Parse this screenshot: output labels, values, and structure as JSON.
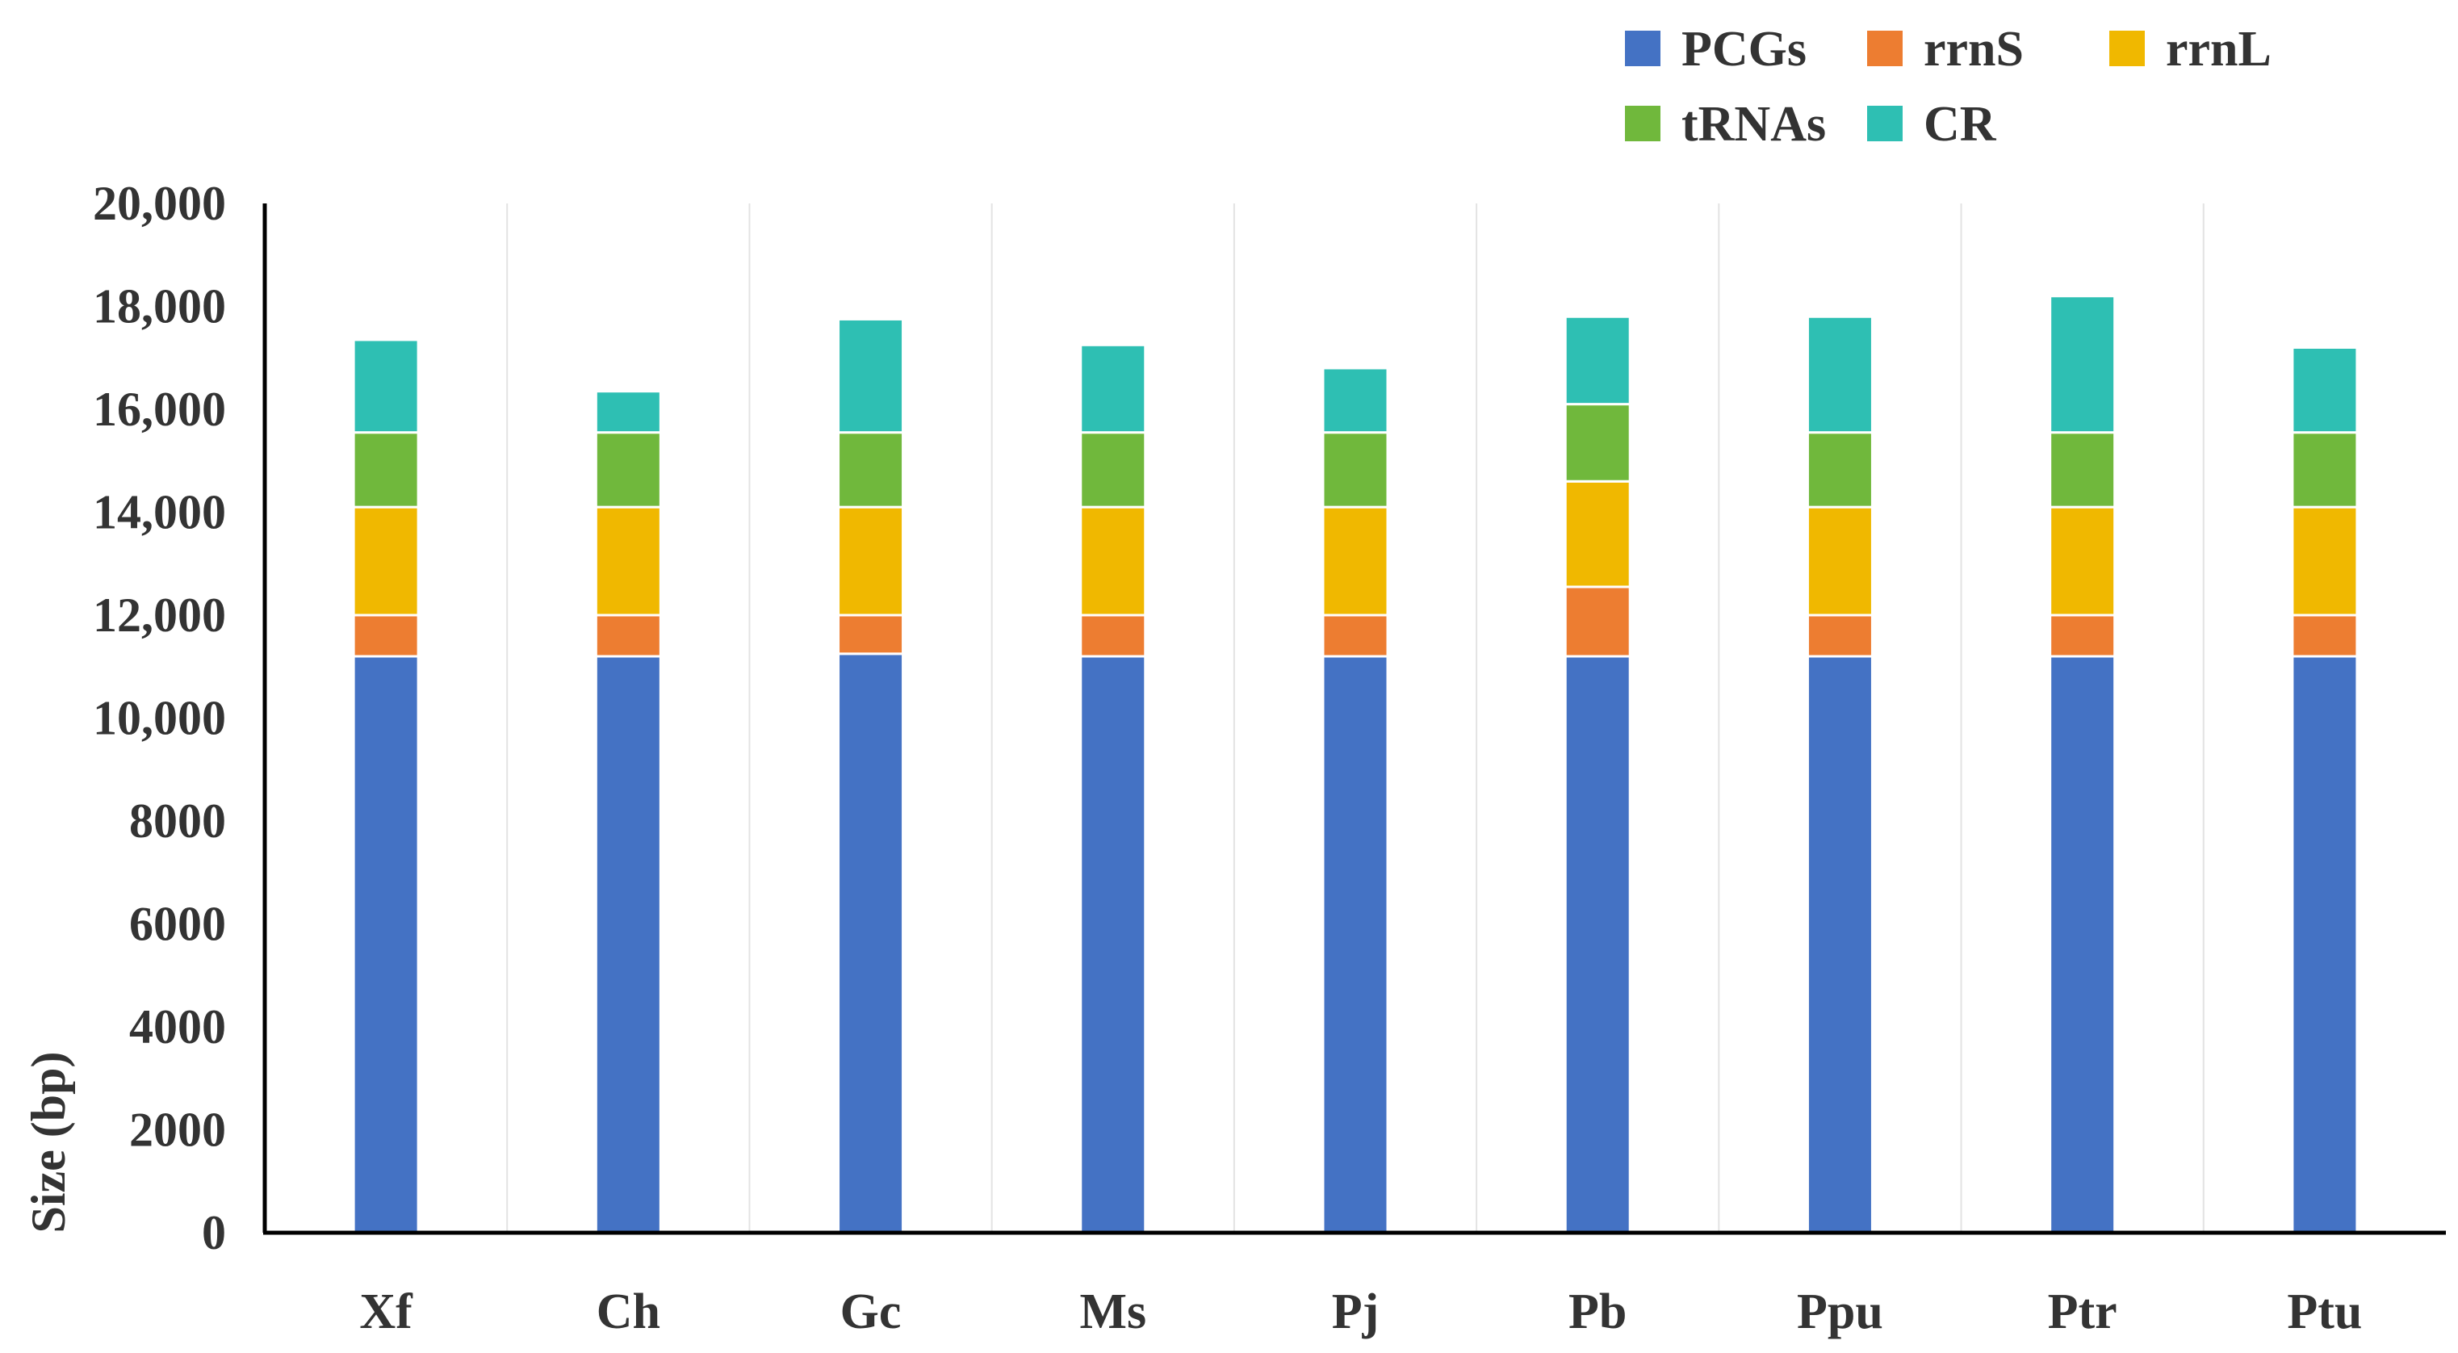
{
  "chart_data": {
    "type": "bar",
    "stacked": true,
    "title": "",
    "xlabel": "",
    "ylabel": "Size (bp)",
    "ylim": [
      0,
      20000
    ],
    "grid": "vertical",
    "legend_position": "top-right",
    "categories": [
      "Xf",
      "Ch",
      "Gc",
      "Ms",
      "Pj",
      "Pb",
      "Ppu",
      "Ptr",
      "Ptu"
    ],
    "y_ticks": [
      {
        "value": 0,
        "label": "0"
      },
      {
        "value": 2000,
        "label": "2000"
      },
      {
        "value": 4000,
        "label": "4000"
      },
      {
        "value": 6000,
        "label": "6000"
      },
      {
        "value": 8000,
        "label": "8000"
      },
      {
        "value": 10000,
        "label": "10,000"
      },
      {
        "value": 12000,
        "label": "12,000"
      },
      {
        "value": 14000,
        "label": "14,000"
      },
      {
        "value": 16000,
        "label": "16,000"
      },
      {
        "value": 18000,
        "label": "18,000"
      },
      {
        "value": 20000,
        "label": "20,000"
      }
    ],
    "series": [
      {
        "name": "PCGs",
        "color": "#4472C4",
        "values": [
          11200,
          11200,
          11250,
          11200,
          11200,
          11200,
          11200,
          11200,
          11200
        ]
      },
      {
        "name": "rrnS",
        "color": "#ED7D31",
        "values": [
          800,
          800,
          750,
          800,
          800,
          1350,
          800,
          800,
          800
        ]
      },
      {
        "name": "rrnL",
        "color": "#F0B800",
        "values": [
          2100,
          2100,
          2100,
          2100,
          2100,
          2050,
          2100,
          2100,
          2100
        ]
      },
      {
        "name": "tRNAs",
        "color": "#70B83C",
        "values": [
          1450,
          1450,
          1450,
          1450,
          1450,
          1500,
          1450,
          1450,
          1450
        ]
      },
      {
        "name": "CR",
        "color": "#2EBFB3",
        "values": [
          1800,
          800,
          2200,
          1700,
          1250,
          1700,
          2250,
          2650,
          1650
        ]
      }
    ]
  }
}
